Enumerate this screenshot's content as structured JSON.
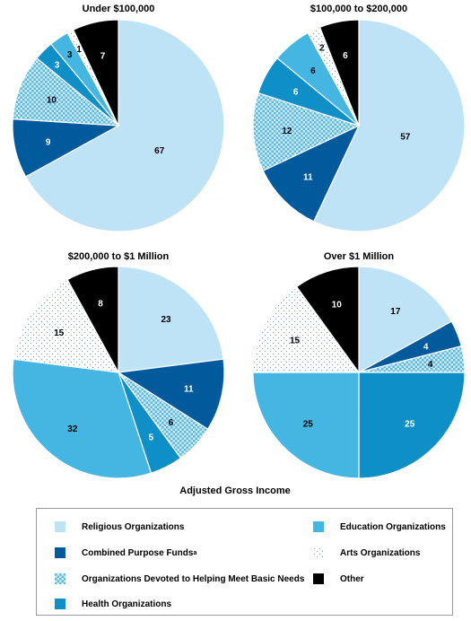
{
  "chart_data": {
    "type": "pie",
    "xlabel": "Adjusted Gross Income",
    "categories": [
      "Religious Organizations",
      "Combined Purpose Funds",
      "Organizations Devoted to Helping Meet Basic Needs",
      "Health Organizations",
      "Education Organizations",
      "Arts Organizations",
      "Other"
    ],
    "category_note": {
      "Combined Purpose Funds": "a"
    },
    "colors": {
      "Religious Organizations": "#bfe3f6",
      "Combined Purpose Funds": "#005a9c",
      "Organizations Devoted to Helping Meet Basic Needs": "#74c6ea",
      "Health Organizations": "#0f8fc7",
      "Education Organizations": "#45b5e2",
      "Arts Organizations": "#ffffff",
      "Other": "#000000"
    },
    "charts": [
      {
        "title": "Under $100,000",
        "values": [
          67,
          9,
          10,
          3,
          3,
          1,
          7
        ]
      },
      {
        "title": "$100,000 to $200,000",
        "values": [
          57,
          11,
          12,
          6,
          6,
          2,
          6
        ]
      },
      {
        "title": "$200,000 to $1 Million",
        "values": [
          23,
          11,
          6,
          5,
          32,
          15,
          8
        ]
      },
      {
        "title": "Over $1 Million",
        "values": [
          17,
          4,
          4,
          25,
          25,
          15,
          10
        ]
      }
    ]
  }
}
